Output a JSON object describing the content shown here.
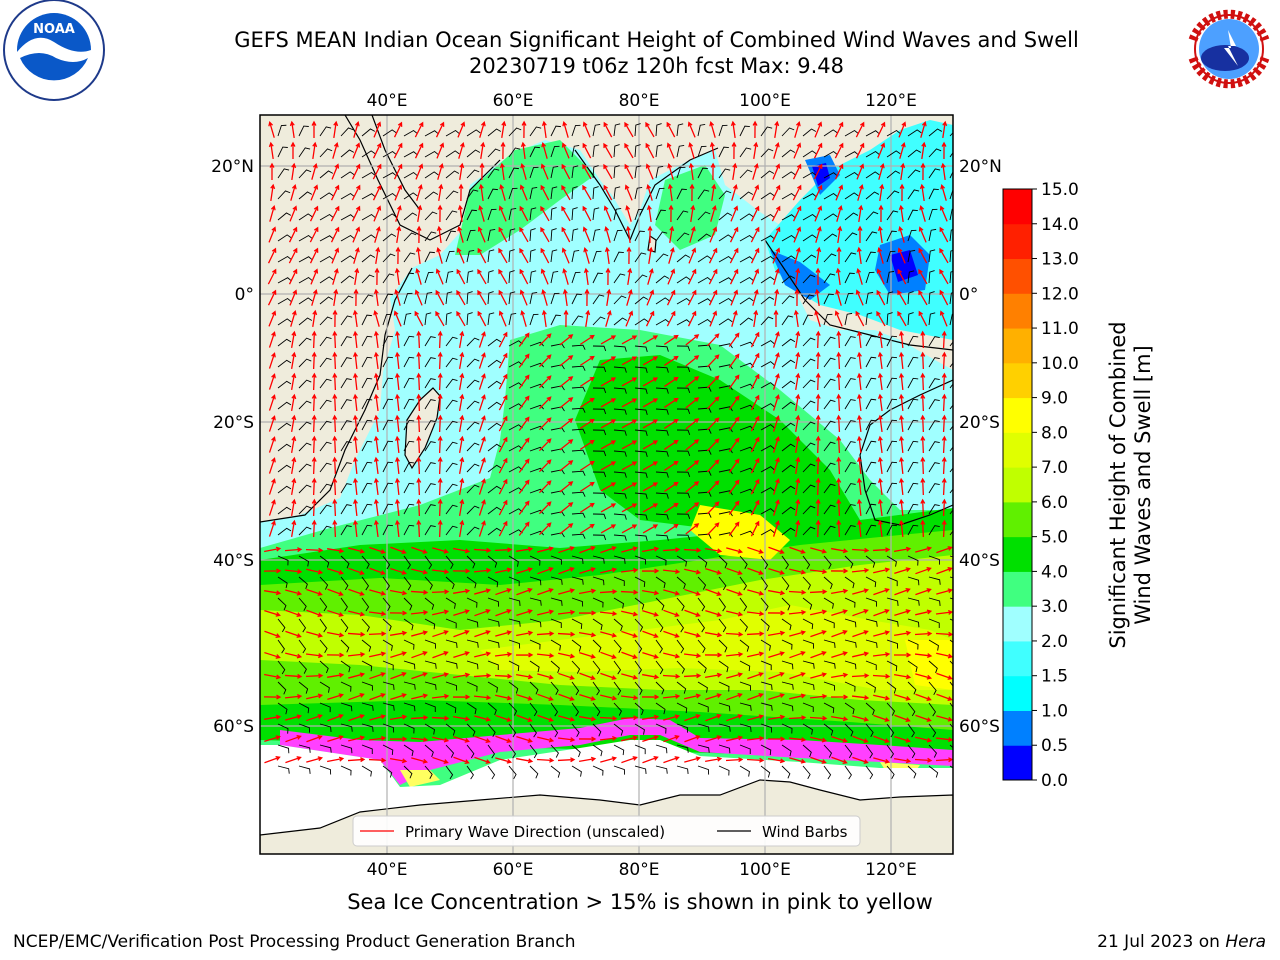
{
  "header": {
    "title_line1": "GEFS MEAN Indian Ocean Significant Height of Combined Wind Waves and Swell",
    "title_line2": "20230719 t06z 120h fcst   Max: 9.48"
  },
  "logos": {
    "left": "NOAA",
    "right": "NATIONAL WEATHER SERVICE"
  },
  "map": {
    "lon_ticks": [
      "40°E",
      "60°E",
      "80°E",
      "100°E",
      "120°E"
    ],
    "lat_ticks_left": [
      "20°N",
      "0°",
      "20°S",
      "40°S",
      "60°S"
    ],
    "lat_ticks_right": [
      "20°N",
      "0°",
      "20°S",
      "40°S",
      "60°S"
    ],
    "grid": true,
    "extent": {
      "lon": [
        20,
        130
      ],
      "lat": [
        -70,
        25
      ]
    },
    "max_value": 9.48
  },
  "legend": {
    "items": [
      {
        "label": "Primary Wave Direction (unscaled)",
        "color": "#ff0000"
      },
      {
        "label": "Wind Barbs",
        "color": "#000000"
      }
    ],
    "placement": "bottom-center"
  },
  "colorbar": {
    "label_line1": "Significant Height of Combined",
    "label_line2": "Wind Waves and Swell [m]",
    "ticks": [
      "0.0",
      "0.5",
      "1.0",
      "1.5",
      "2.0",
      "3.0",
      "4.0",
      "5.0",
      "6.0",
      "7.0",
      "8.0",
      "9.0",
      "10.0",
      "11.0",
      "12.0",
      "13.0",
      "14.0",
      "15.0"
    ],
    "colors": [
      "#0000ff",
      "#0080ff",
      "#00ffff",
      "#40ffff",
      "#a0ffff",
      "#40ff80",
      "#00e000",
      "#60f000",
      "#c0ff00",
      "#e0ff00",
      "#ffff00",
      "#ffd000",
      "#ffb000",
      "#ff8000",
      "#ff5000",
      "#ff2000",
      "#ff0000"
    ]
  },
  "caption": "Sea Ice Concentration > 15% is shown in pink to yellow",
  "footer": {
    "left": "NCEP/EMC/Verification Post Processing Product Generation Branch",
    "date": "21 Jul 2023 on",
    "host": "Hera"
  },
  "colors": {
    "land": "#efecdc",
    "ice_pink": "#ff40ff",
    "ice_yellow": "#ffff60"
  }
}
